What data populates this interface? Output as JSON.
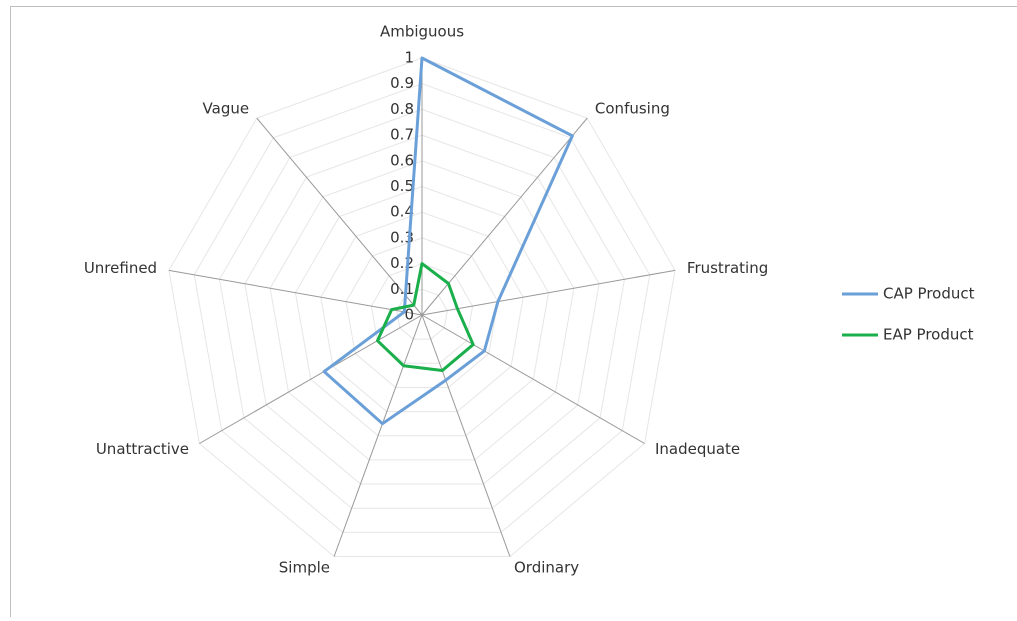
{
  "chart_data": {
    "type": "radar",
    "categories": [
      "Ambiguous",
      "Confusing",
      "Frustrating",
      "Inadequate",
      "Ordinary",
      "Simple",
      "Unattractive",
      "Unrefined",
      "Vague"
    ],
    "series": [
      {
        "name": "CAP Product",
        "color": "#6a9fd8",
        "values": [
          1,
          0.91,
          0.3,
          0.28,
          0.27,
          0.45,
          0.44,
          0.07,
          0.1
        ]
      },
      {
        "name": "EAP Product",
        "color": "#1aaf4b",
        "values": [
          0.2,
          0.16,
          0.14,
          0.23,
          0.23,
          0.21,
          0.2,
          0.12,
          0.05
        ]
      }
    ],
    "ylim": [
      0,
      1
    ],
    "yticks": [
      0,
      0.1,
      0.2,
      0.3,
      0.4,
      0.5,
      0.6,
      0.7,
      0.8,
      0.9,
      1
    ],
    "grid": true,
    "legend": "right"
  }
}
